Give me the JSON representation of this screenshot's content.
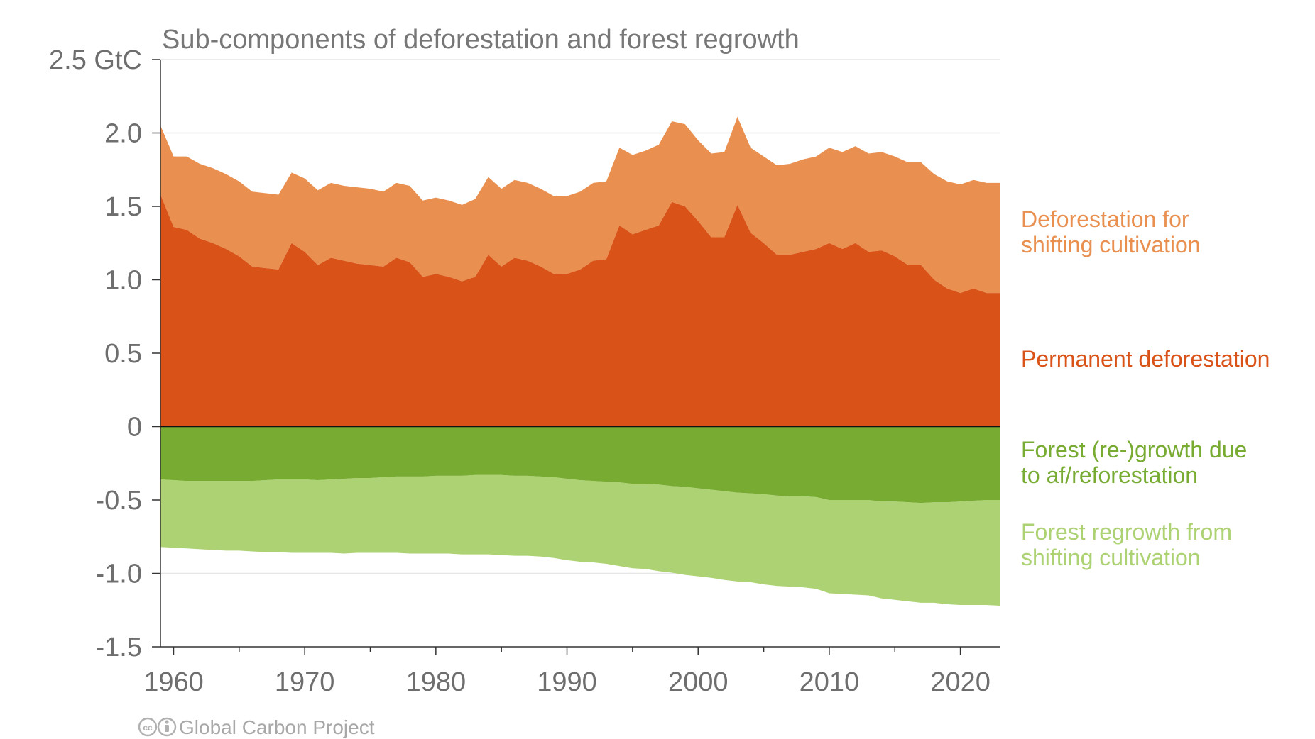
{
  "chart_data": {
    "type": "area",
    "title": "Sub-components of deforestation and forest regrowth",
    "y_unit_label": "2.5 GtC",
    "ylim": [
      -1.5,
      2.5
    ],
    "xlim": [
      1959,
      2023
    ],
    "y_ticks": [
      {
        "value": 2.5,
        "label": "2.5 GtC"
      },
      {
        "value": 2.0,
        "label": "2.0"
      },
      {
        "value": 1.5,
        "label": "1.5"
      },
      {
        "value": 1.0,
        "label": "1.0"
      },
      {
        "value": 0.5,
        "label": "0.5"
      },
      {
        "value": 0,
        "label": "0"
      },
      {
        "value": -0.5,
        "label": "-0.5"
      },
      {
        "value": -1.0,
        "label": "-1.0"
      },
      {
        "value": -1.5,
        "label": "-1.5"
      }
    ],
    "x_ticks": [
      {
        "value": 1960,
        "label": "1960"
      },
      {
        "value": 1970,
        "label": "1970"
      },
      {
        "value": 1980,
        "label": "1980"
      },
      {
        "value": 1990,
        "label": "1990"
      },
      {
        "value": 2000,
        "label": "2000"
      },
      {
        "value": 2010,
        "label": "2010"
      },
      {
        "value": 2020,
        "label": "2020"
      }
    ],
    "grid": true,
    "legend": "right, inline labels",
    "x": [
      1959,
      1960,
      1961,
      1962,
      1963,
      1964,
      1965,
      1966,
      1967,
      1968,
      1969,
      1970,
      1971,
      1972,
      1973,
      1974,
      1975,
      1976,
      1977,
      1978,
      1979,
      1980,
      1981,
      1982,
      1983,
      1984,
      1985,
      1986,
      1987,
      1988,
      1989,
      1990,
      1991,
      1992,
      1993,
      1994,
      1995,
      1996,
      1997,
      1998,
      1999,
      2000,
      2001,
      2002,
      2003,
      2004,
      2005,
      2006,
      2007,
      2008,
      2009,
      2010,
      2011,
      2012,
      2013,
      2014,
      2015,
      2016,
      2017,
      2018,
      2019,
      2020,
      2021,
      2022,
      2023
    ],
    "series": [
      {
        "name": "Permanent deforestation",
        "label_lines": [
          "Permanent deforestation"
        ],
        "color": "#d95319",
        "values": [
          1.58,
          1.36,
          1.34,
          1.28,
          1.25,
          1.21,
          1.16,
          1.09,
          1.08,
          1.07,
          1.25,
          1.19,
          1.1,
          1.15,
          1.13,
          1.11,
          1.1,
          1.09,
          1.15,
          1.12,
          1.02,
          1.04,
          1.02,
          0.99,
          1.02,
          1.17,
          1.09,
          1.15,
          1.13,
          1.09,
          1.04,
          1.04,
          1.07,
          1.13,
          1.14,
          1.37,
          1.31,
          1.34,
          1.37,
          1.53,
          1.5,
          1.4,
          1.29,
          1.29,
          1.51,
          1.32,
          1.25,
          1.17,
          1.17,
          1.19,
          1.21,
          1.25,
          1.21,
          1.25,
          1.19,
          1.2,
          1.16,
          1.1,
          1.1,
          1.0,
          0.94,
          0.91,
          0.94,
          0.91,
          0.91
        ]
      },
      {
        "name": "Deforestation for shifting cultivation",
        "label_lines": [
          "Deforestation for",
          "shifting cultivation"
        ],
        "color": "#e99050",
        "values": [
          0.47,
          0.48,
          0.5,
          0.51,
          0.51,
          0.51,
          0.51,
          0.51,
          0.51,
          0.51,
          0.48,
          0.5,
          0.51,
          0.51,
          0.51,
          0.52,
          0.52,
          0.51,
          0.51,
          0.52,
          0.52,
          0.52,
          0.52,
          0.52,
          0.53,
          0.53,
          0.53,
          0.53,
          0.53,
          0.53,
          0.53,
          0.53,
          0.53,
          0.53,
          0.53,
          0.53,
          0.54,
          0.54,
          0.55,
          0.55,
          0.56,
          0.55,
          0.57,
          0.58,
          0.6,
          0.58,
          0.59,
          0.61,
          0.62,
          0.63,
          0.63,
          0.65,
          0.66,
          0.66,
          0.67,
          0.67,
          0.68,
          0.7,
          0.7,
          0.72,
          0.73,
          0.74,
          0.74,
          0.75,
          0.75
        ]
      },
      {
        "name": "Forest (re-)growth due to af/reforestation",
        "label_lines": [
          "Forest (re-)growth due",
          "to af/reforestation"
        ],
        "color": "#78ab32",
        "values": [
          -0.36,
          -0.365,
          -0.37,
          -0.37,
          -0.37,
          -0.37,
          -0.37,
          -0.37,
          -0.365,
          -0.36,
          -0.36,
          -0.36,
          -0.365,
          -0.36,
          -0.355,
          -0.35,
          -0.35,
          -0.345,
          -0.34,
          -0.34,
          -0.34,
          -0.335,
          -0.335,
          -0.335,
          -0.33,
          -0.33,
          -0.33,
          -0.335,
          -0.335,
          -0.34,
          -0.345,
          -0.355,
          -0.365,
          -0.37,
          -0.375,
          -0.38,
          -0.39,
          -0.39,
          -0.395,
          -0.405,
          -0.41,
          -0.42,
          -0.43,
          -0.44,
          -0.45,
          -0.455,
          -0.46,
          -0.47,
          -0.475,
          -0.475,
          -0.48,
          -0.5,
          -0.5,
          -0.5,
          -0.5,
          -0.51,
          -0.51,
          -0.515,
          -0.52,
          -0.515,
          -0.515,
          -0.51,
          -0.505,
          -0.5,
          -0.5
        ]
      },
      {
        "name": "Forest regrowth from shifting cultivation",
        "label_lines": [
          "Forest regrowth from",
          "shifting cultivation"
        ],
        "color": "#add273",
        "values": [
          -0.46,
          -0.46,
          -0.46,
          -0.465,
          -0.47,
          -0.475,
          -0.475,
          -0.48,
          -0.49,
          -0.495,
          -0.5,
          -0.5,
          -0.495,
          -0.5,
          -0.51,
          -0.51,
          -0.51,
          -0.515,
          -0.52,
          -0.525,
          -0.525,
          -0.53,
          -0.53,
          -0.535,
          -0.54,
          -0.54,
          -0.545,
          -0.545,
          -0.545,
          -0.545,
          -0.55,
          -0.555,
          -0.555,
          -0.555,
          -0.56,
          -0.57,
          -0.575,
          -0.58,
          -0.59,
          -0.59,
          -0.6,
          -0.6,
          -0.6,
          -0.605,
          -0.605,
          -0.605,
          -0.615,
          -0.615,
          -0.615,
          -0.62,
          -0.625,
          -0.635,
          -0.64,
          -0.645,
          -0.65,
          -0.66,
          -0.67,
          -0.675,
          -0.68,
          -0.685,
          -0.695,
          -0.705,
          -0.71,
          -0.715,
          -0.72
        ]
      }
    ]
  },
  "credit": {
    "cc_icon": "creative-commons-icon",
    "by_icon": "attribution-icon",
    "text": "Global Carbon Project"
  }
}
